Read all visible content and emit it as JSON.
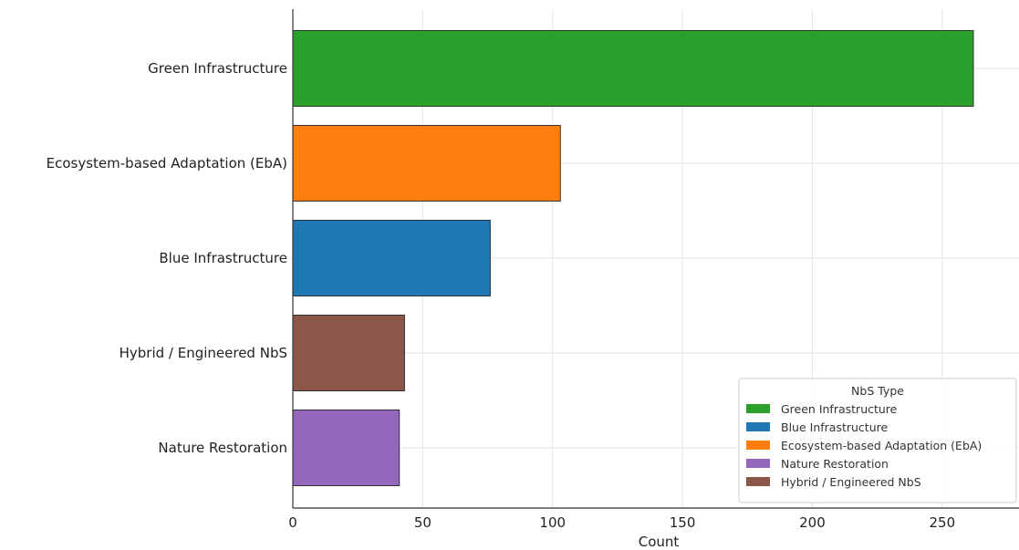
{
  "chart_data": {
    "type": "bar",
    "orientation": "horizontal",
    "categories": [
      "Green Infrastructure",
      "Ecosystem-based Adaptation (EbA)",
      "Blue Infrastructure",
      "Hybrid / Engineered NbS",
      "Nature Restoration"
    ],
    "values": [
      262,
      103,
      76,
      43,
      41
    ],
    "colors": [
      "#2ca02c",
      "#ff7f0e",
      "#1f77b4",
      "#8c564b",
      "#9467bd"
    ],
    "xlabel": "Count",
    "ylabel": "",
    "xlim": [
      0,
      280
    ],
    "xticks": [
      0,
      50,
      100,
      150,
      200,
      250
    ],
    "grid": true,
    "legend": {
      "title": "NbS Type",
      "position": "lower-right",
      "entries": [
        {
          "label": "Green Infrastructure",
          "color": "#2ca02c"
        },
        {
          "label": "Blue Infrastructure",
          "color": "#1f77b4"
        },
        {
          "label": "Ecosystem-based Adaptation (EbA)",
          "color": "#ff7f0e"
        },
        {
          "label": "Nature Restoration",
          "color": "#9467bd"
        },
        {
          "label": "Hybrid / Engineered NbS",
          "color": "#8c564b"
        }
      ]
    }
  }
}
